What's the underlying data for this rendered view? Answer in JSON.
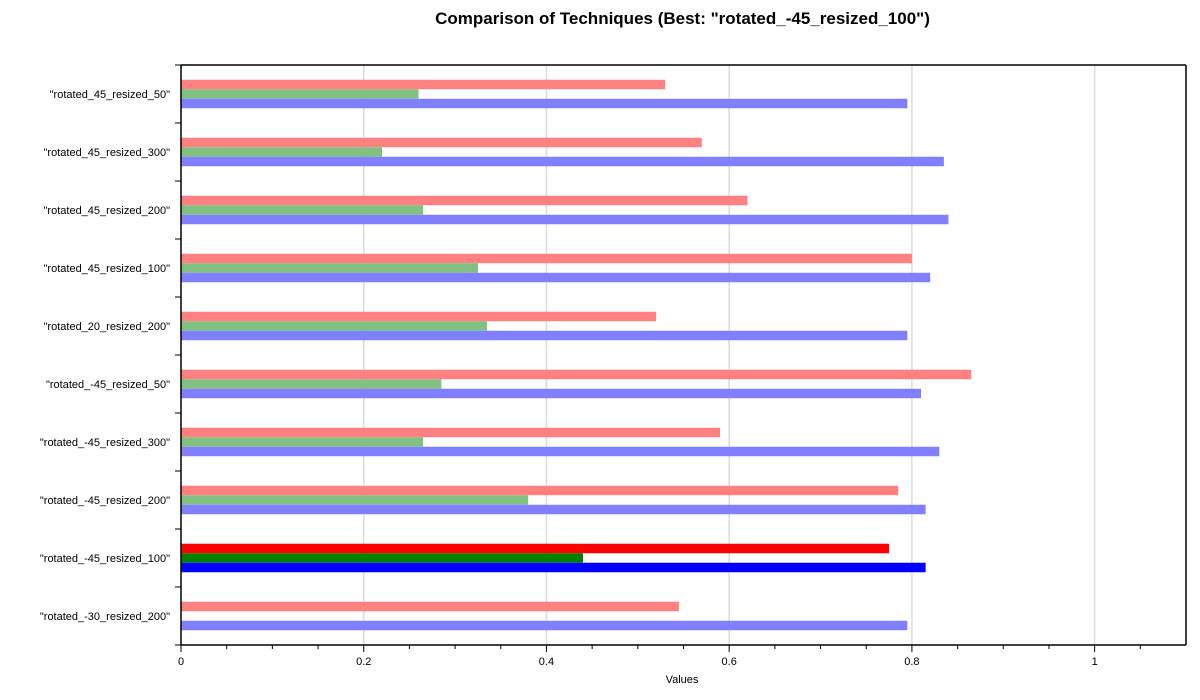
{
  "chart_data": {
    "type": "bar",
    "orientation": "horizontal",
    "title": "Comparison of Techniques (Best: \"rotated_-45_resized_100\")",
    "xlabel": "Values",
    "ylabel": "",
    "xlim": [
      0,
      1.1
    ],
    "x_ticks": [
      "0",
      "0.2",
      "0.4",
      "0.6",
      "0.8",
      "1"
    ],
    "grid": "vertical",
    "best_category": "\"rotated_-45_resized_100\"",
    "categories": [
      "\"rotated_45_resized_50\"",
      "\"rotated_45_resized_300\"",
      "\"rotated_45_resized_200\"",
      "\"rotated_45_resized_100\"",
      "\"rotated_20_resized_200\"",
      "\"rotated_-45_resized_50\"",
      "\"rotated_-45_resized_300\"",
      "\"rotated_-45_resized_200\"",
      "\"rotated_-45_resized_100\"",
      "\"rotated_-30_resized_200\""
    ],
    "series": [
      {
        "color": "#ff8080",
        "highlight_color": "#ff0000",
        "values": [
          0.53,
          0.57,
          0.62,
          0.8,
          0.52,
          0.865,
          0.59,
          0.785,
          0.775,
          0.545
        ]
      },
      {
        "color": "#80c080",
        "highlight_color": "#008000",
        "values": [
          0.26,
          0.22,
          0.265,
          0.325,
          0.335,
          0.285,
          0.265,
          0.38,
          0.44,
          0
        ]
      },
      {
        "color": "#8080ff",
        "highlight_color": "#0000ff",
        "values": [
          0.795,
          0.835,
          0.84,
          0.82,
          0.795,
          0.81,
          0.83,
          0.815,
          0.815,
          0.795
        ]
      }
    ]
  }
}
